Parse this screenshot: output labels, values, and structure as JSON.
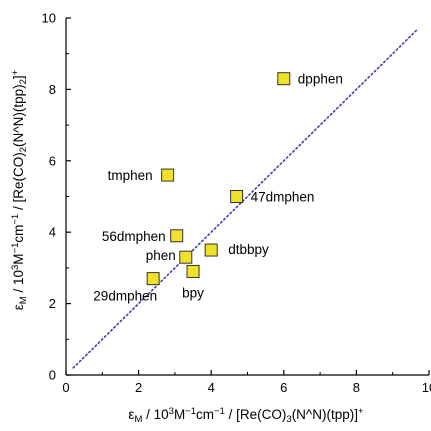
{
  "chart_data": {
    "type": "scatter",
    "title": "",
    "xlabel": {
      "prefix": "ε",
      "prefix_sub": "M",
      "mid": " / 10",
      "mid_sup": "3",
      "rest": "M",
      "rest_sup": "−1",
      "rest2": "cm",
      "rest2_sup": "−1",
      "compound_a": " / [Re(CO)",
      "compound_sub": "3",
      "compound_b": "(N^N)(tpp)]",
      "compound_sup": "+"
    },
    "ylabel": {
      "prefix": "ε",
      "prefix_sub": "M",
      "mid": " / 10",
      "mid_sup": "3",
      "rest": "M",
      "rest_sup": "−1",
      "rest2": "cm",
      "rest2_sup": "−1",
      "compound_a": " / [Re(CO)",
      "compound_sub": "2",
      "compound_b": "(N^N)(tpp)",
      "compound_sub2": "2",
      "compound_c": "]",
      "compound_sup": "+"
    },
    "xlim": [
      0,
      10
    ],
    "ylim": [
      0,
      10
    ],
    "xticks": [
      "0",
      "2",
      "4",
      "6",
      "8",
      "10"
    ],
    "yticks": [
      "0",
      "2",
      "4",
      "6",
      "8",
      "10"
    ],
    "grid": false,
    "legend": "none",
    "marker_color": "#f0e22a",
    "marker_edge_color": "#333333",
    "reference_line": {
      "style": "dotted",
      "color": "#3c3cb4",
      "from": [
        0.2,
        0.2
      ],
      "to": [
        9.7,
        9.7
      ]
    },
    "points": [
      {
        "label": "dpphen",
        "x": 6.0,
        "y": 8.3
      },
      {
        "label": "tmphen",
        "x": 2.8,
        "y": 5.6
      },
      {
        "label": "47dmphen",
        "x": 4.7,
        "y": 5.0
      },
      {
        "label": "56dmphen",
        "x": 3.05,
        "y": 3.9
      },
      {
        "label": "dtbbpy",
        "x": 4.0,
        "y": 3.5
      },
      {
        "label": "phen",
        "x": 3.3,
        "y": 3.3
      },
      {
        "label": "bpy",
        "x": 3.5,
        "y": 2.9
      },
      {
        "label": "29dmphen",
        "x": 2.4,
        "y": 2.7
      }
    ]
  }
}
